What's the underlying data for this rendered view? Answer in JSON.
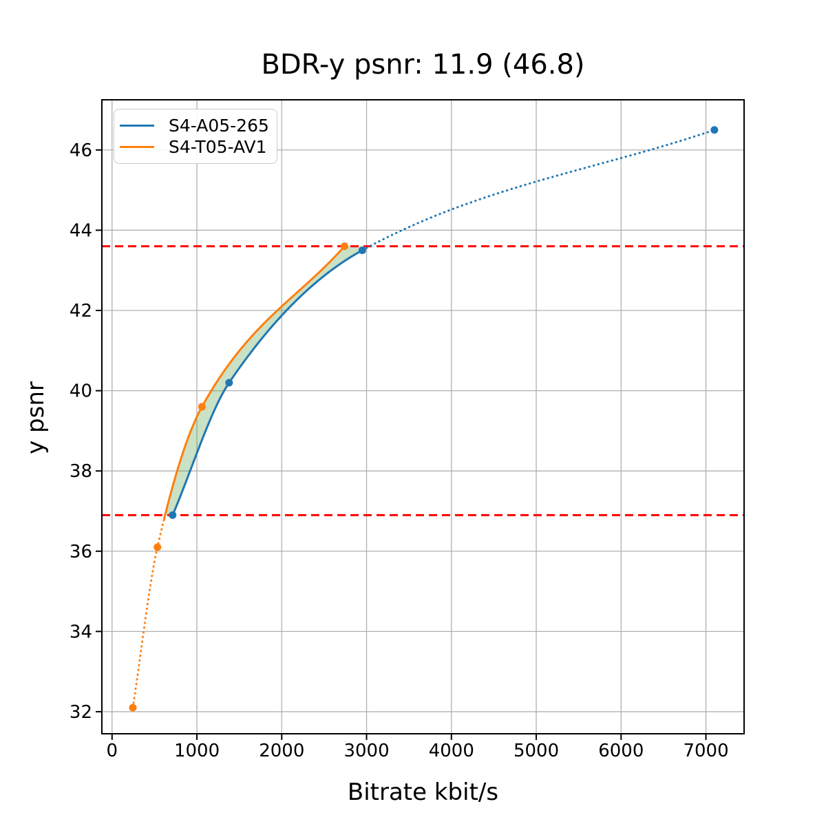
{
  "chart_data": {
    "type": "line",
    "title": "BDR-y psnr: 11.9 (46.8)",
    "xlabel": "Bitrate kbit/s",
    "ylabel": "y psnr",
    "xlim": [
      -120,
      7450
    ],
    "ylim": [
      31.45,
      47.25
    ],
    "x_ticks": [
      0,
      1000,
      2000,
      3000,
      4000,
      5000,
      6000,
      7000
    ],
    "y_ticks": [
      32,
      34,
      36,
      38,
      40,
      42,
      44,
      46
    ],
    "grid": true,
    "grid_color": "#b0b0b0",
    "legend_position": "upper left",
    "series": [
      {
        "name": "S4-A05-265",
        "color": "#1f77b4",
        "x": [
          714,
          1380,
          2950,
          7100
        ],
        "y": [
          36.9,
          40.2,
          43.5,
          46.5
        ],
        "solid_x": [
          714,
          2950
        ],
        "dotted_x": [
          [
            2950,
            7100
          ]
        ]
      },
      {
        "name": "S4-T05-AV1",
        "color": "#ff7f0e",
        "x": [
          245,
          535,
          1060,
          2740
        ],
        "y": [
          32.1,
          36.1,
          39.6,
          43.6
        ],
        "solid_x": [
          610,
          2740
        ],
        "dotted_x": [
          [
            245,
            610
          ]
        ]
      }
    ],
    "reference_lines": [
      {
        "y": 43.6,
        "color": "#ff0000",
        "style": "dashed"
      },
      {
        "y": 36.9,
        "color": "#ff0000",
        "style": "dashed"
      }
    ],
    "shaded_region": {
      "between": [
        "S4-T05-AV1",
        "S4-A05-265"
      ],
      "y_range": [
        36.9,
        43.6
      ],
      "color": "#4d9b3c",
      "opacity": 0.3
    }
  }
}
